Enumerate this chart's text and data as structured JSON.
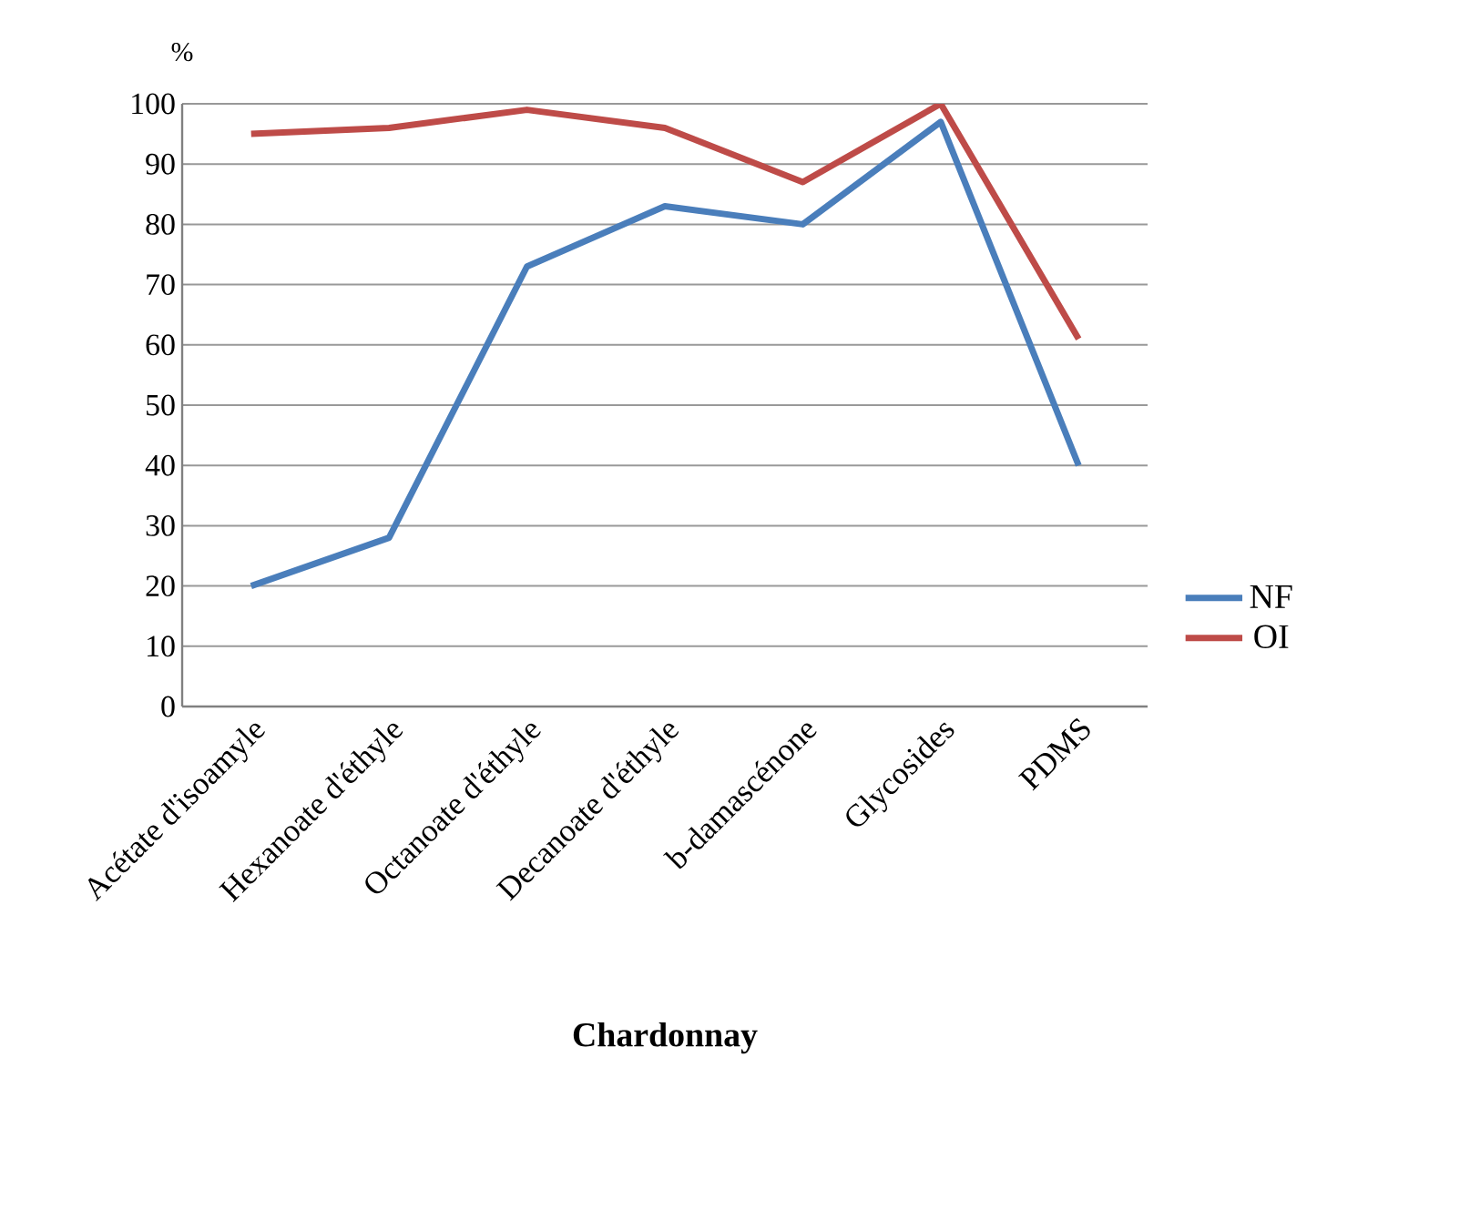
{
  "chart_data": {
    "type": "line",
    "xlabel": "Chardonnay",
    "ylabel": "%",
    "categories": [
      "Acétate d'isoamyle",
      "Hexanoate d'éthyle",
      "Octanoate d'éthyle",
      "Decanoate d'éthyle",
      "b-damascénone",
      "Glycosides",
      "PDMS"
    ],
    "series": [
      {
        "name": "NF",
        "color": "#4a7ebb",
        "values": [
          20,
          28,
          73,
          83,
          80,
          97,
          40
        ]
      },
      {
        "name": "OI",
        "color": "#be4b48",
        "values": [
          95,
          96,
          99,
          96,
          87,
          100,
          61
        ]
      }
    ],
    "ylim": [
      0,
      100
    ],
    "yticks": [
      0,
      10,
      20,
      30,
      40,
      50,
      60,
      70,
      80,
      90,
      100
    ],
    "grid": "y",
    "legend": "right",
    "marker": "none",
    "line_style": "solid"
  }
}
